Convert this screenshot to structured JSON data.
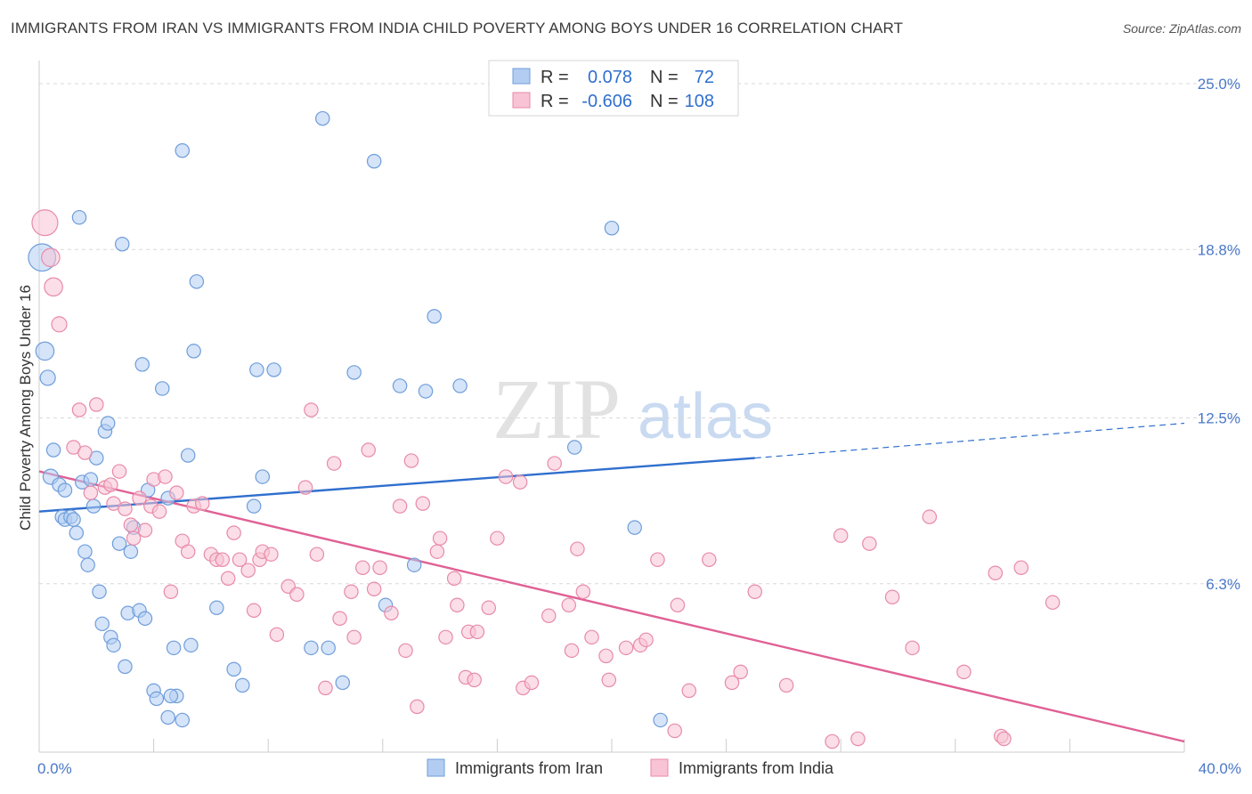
{
  "title": "IMMIGRANTS FROM IRAN VS IMMIGRANTS FROM INDIA CHILD POVERTY AMONG BOYS UNDER 16 CORRELATION CHART",
  "source": "Source: ZipAtlas.com",
  "watermark": {
    "zip": "ZIP",
    "atlas": "atlas"
  },
  "colors": {
    "iran_fill": "#b3cdf2",
    "iran_stroke": "#6f9ddb",
    "iran_line": "#2f6fce",
    "india_fill": "#f8c3d4",
    "india_stroke": "#e88aaa",
    "india_line": "#e06094",
    "grid": "#d9d9d9",
    "tick_label": "#4a78c8"
  },
  "legend": {
    "r_label": "R =",
    "n_label": "N =",
    "iran": {
      "r": "0.078",
      "n": "72"
    },
    "india": {
      "r": "-0.606",
      "n": "108"
    }
  },
  "chart_data": {
    "type": "scatter",
    "xlabel": "",
    "ylabel": "Child Poverty Among Boys Under 16",
    "xlim": [
      0,
      40
    ],
    "ylim": [
      0,
      25.6
    ],
    "x_tick_labels": [
      "0.0%",
      "40.0%"
    ],
    "y_ticks": [
      6.3,
      12.5,
      18.8,
      25.0
    ],
    "y_tick_labels": [
      "6.3%",
      "12.5%",
      "18.8%",
      "25.0%"
    ],
    "grid": "horizontal dashed",
    "legend_position": "top-center",
    "series": [
      {
        "name": "Immigrants from Iran",
        "trend": {
          "x": [
            0,
            25
          ],
          "y": [
            9.0,
            11.0
          ],
          "dashed_to": [
            40,
            12.3
          ]
        },
        "points": [
          [
            0.1,
            18.5,
            1.8
          ],
          [
            0.2,
            15.0,
            1.2
          ],
          [
            0.3,
            14.0,
            1.0
          ],
          [
            0.4,
            10.3,
            1.0
          ],
          [
            0.5,
            11.3,
            0.9
          ],
          [
            0.7,
            10.0,
            0.9
          ],
          [
            0.8,
            8.8,
            0.9
          ],
          [
            0.9,
            8.7,
            0.9
          ],
          [
            0.9,
            9.8,
            0.9
          ],
          [
            1.1,
            8.8,
            0.9
          ],
          [
            1.2,
            8.7,
            0.9
          ],
          [
            1.3,
            8.2,
            0.9
          ],
          [
            1.4,
            20.0,
            0.9
          ],
          [
            1.5,
            10.1,
            0.9
          ],
          [
            1.6,
            7.5,
            0.9
          ],
          [
            1.7,
            7.0,
            0.9
          ],
          [
            1.8,
            10.2,
            0.9
          ],
          [
            1.9,
            9.2,
            0.9
          ],
          [
            2.0,
            11.0,
            0.9
          ],
          [
            2.1,
            6.0,
            0.9
          ],
          [
            2.2,
            4.8,
            0.9
          ],
          [
            2.3,
            12.0,
            0.9
          ],
          [
            2.4,
            12.3,
            0.9
          ],
          [
            2.5,
            4.3,
            0.9
          ],
          [
            2.6,
            4.0,
            0.9
          ],
          [
            2.8,
            7.8,
            0.9
          ],
          [
            2.9,
            19.0,
            0.9
          ],
          [
            3.0,
            3.2,
            0.9
          ],
          [
            3.1,
            5.2,
            0.9
          ],
          [
            3.2,
            7.5,
            0.9
          ],
          [
            3.3,
            8.4,
            0.9
          ],
          [
            3.5,
            5.3,
            0.9
          ],
          [
            3.6,
            14.5,
            0.9
          ],
          [
            3.7,
            5.0,
            0.9
          ],
          [
            3.8,
            9.8,
            0.9
          ],
          [
            4.0,
            2.3,
            0.9
          ],
          [
            4.1,
            2.0,
            0.9
          ],
          [
            4.3,
            13.6,
            0.9
          ],
          [
            4.5,
            9.5,
            0.9
          ],
          [
            4.7,
            3.9,
            0.9
          ],
          [
            4.8,
            2.1,
            0.9
          ],
          [
            5.0,
            22.5,
            0.9
          ],
          [
            5.2,
            11.1,
            0.9
          ],
          [
            5.3,
            4.0,
            0.9
          ],
          [
            5.4,
            15.0,
            0.9
          ],
          [
            5.5,
            17.6,
            0.9
          ],
          [
            6.2,
            5.4,
            0.9
          ],
          [
            6.8,
            3.1,
            0.9
          ],
          [
            7.1,
            2.5,
            0.9
          ],
          [
            7.5,
            9.2,
            0.9
          ],
          [
            7.6,
            14.3,
            0.9
          ],
          [
            7.8,
            10.3,
            0.9
          ],
          [
            8.2,
            14.3,
            0.9
          ],
          [
            9.5,
            3.9,
            0.9
          ],
          [
            9.9,
            23.7,
            0.9
          ],
          [
            10.1,
            3.9,
            0.9
          ],
          [
            10.6,
            2.6,
            0.9
          ],
          [
            11.0,
            14.2,
            0.9
          ],
          [
            11.7,
            22.1,
            0.9
          ],
          [
            12.1,
            5.5,
            0.9
          ],
          [
            12.6,
            13.7,
            0.9
          ],
          [
            13.1,
            7.0,
            0.9
          ],
          [
            13.5,
            13.5,
            0.9
          ],
          [
            13.8,
            16.3,
            0.9
          ],
          [
            14.7,
            13.7,
            0.9
          ],
          [
            18.7,
            11.4,
            0.9
          ],
          [
            20.0,
            19.6,
            0.9
          ],
          [
            20.8,
            8.4,
            0.9
          ],
          [
            4.5,
            1.3,
            0.9
          ],
          [
            5.0,
            1.2,
            0.9
          ],
          [
            21.7,
            1.2,
            0.9
          ],
          [
            4.6,
            2.1,
            0.9
          ]
        ]
      },
      {
        "name": "Immigrants from India",
        "trend": {
          "x": [
            0,
            40
          ],
          "y": [
            10.5,
            0.4
          ]
        },
        "points": [
          [
            0.2,
            19.8,
            1.7
          ],
          [
            0.4,
            18.5,
            1.2
          ],
          [
            0.5,
            17.4,
            1.2
          ],
          [
            0.7,
            16.0,
            1.0
          ],
          [
            1.2,
            11.4,
            0.9
          ],
          [
            1.4,
            12.8,
            0.9
          ],
          [
            1.6,
            11.2,
            0.9
          ],
          [
            1.8,
            9.7,
            0.9
          ],
          [
            2.0,
            13.0,
            0.9
          ],
          [
            2.3,
            9.9,
            0.9
          ],
          [
            2.5,
            10.0,
            0.9
          ],
          [
            2.6,
            9.3,
            0.9
          ],
          [
            2.8,
            10.5,
            0.9
          ],
          [
            3.0,
            9.1,
            0.9
          ],
          [
            3.2,
            8.5,
            0.9
          ],
          [
            3.3,
            8.0,
            0.9
          ],
          [
            3.5,
            9.5,
            0.9
          ],
          [
            3.7,
            8.3,
            0.9
          ],
          [
            3.9,
            9.2,
            0.9
          ],
          [
            4.0,
            10.2,
            0.9
          ],
          [
            4.2,
            9.0,
            0.9
          ],
          [
            4.4,
            10.3,
            0.9
          ],
          [
            4.6,
            6.0,
            0.9
          ],
          [
            4.8,
            9.7,
            0.9
          ],
          [
            5.0,
            7.9,
            0.9
          ],
          [
            5.2,
            7.5,
            0.9
          ],
          [
            5.4,
            9.2,
            0.9
          ],
          [
            5.7,
            9.3,
            0.9
          ],
          [
            6.0,
            7.4,
            0.9
          ],
          [
            6.2,
            7.2,
            0.9
          ],
          [
            6.4,
            7.2,
            0.9
          ],
          [
            6.6,
            6.5,
            0.9
          ],
          [
            6.8,
            8.2,
            0.9
          ],
          [
            7.0,
            7.2,
            0.9
          ],
          [
            7.3,
            6.8,
            0.9
          ],
          [
            7.5,
            5.3,
            0.9
          ],
          [
            7.7,
            7.2,
            0.9
          ],
          [
            7.8,
            7.5,
            0.9
          ],
          [
            8.1,
            7.4,
            0.9
          ],
          [
            8.3,
            4.4,
            0.9
          ],
          [
            8.7,
            6.2,
            0.9
          ],
          [
            9.0,
            5.9,
            0.9
          ],
          [
            9.3,
            9.9,
            0.9
          ],
          [
            9.5,
            12.8,
            0.9
          ],
          [
            9.7,
            7.4,
            0.9
          ],
          [
            10.0,
            2.4,
            0.9
          ],
          [
            10.3,
            10.8,
            0.9
          ],
          [
            10.5,
            5.0,
            0.9
          ],
          [
            10.9,
            6.0,
            0.9
          ],
          [
            11.0,
            4.3,
            0.9
          ],
          [
            11.3,
            6.9,
            0.9
          ],
          [
            11.5,
            11.3,
            0.9
          ],
          [
            11.7,
            6.1,
            0.9
          ],
          [
            11.9,
            6.9,
            0.9
          ],
          [
            12.3,
            5.2,
            0.9
          ],
          [
            12.6,
            9.2,
            0.9
          ],
          [
            12.8,
            3.8,
            0.9
          ],
          [
            13.0,
            10.9,
            0.9
          ],
          [
            13.2,
            1.7,
            0.9
          ],
          [
            13.4,
            9.3,
            0.9
          ],
          [
            13.9,
            7.5,
            0.9
          ],
          [
            14.0,
            8.0,
            0.9
          ],
          [
            14.2,
            4.3,
            0.9
          ],
          [
            14.5,
            6.5,
            0.9
          ],
          [
            14.6,
            5.5,
            0.9
          ],
          [
            14.9,
            2.8,
            0.9
          ],
          [
            15.0,
            4.5,
            0.9
          ],
          [
            15.2,
            2.7,
            0.9
          ],
          [
            15.3,
            4.5,
            0.9
          ],
          [
            15.7,
            5.4,
            0.9
          ],
          [
            16.0,
            8.0,
            0.9
          ],
          [
            16.3,
            10.3,
            0.9
          ],
          [
            16.8,
            10.1,
            0.9
          ],
          [
            16.9,
            2.4,
            0.9
          ],
          [
            17.2,
            2.6,
            0.9
          ],
          [
            17.8,
            5.1,
            0.9
          ],
          [
            18.0,
            10.8,
            0.9
          ],
          [
            18.5,
            5.5,
            0.9
          ],
          [
            18.6,
            3.8,
            0.9
          ],
          [
            18.8,
            7.6,
            0.9
          ],
          [
            19.0,
            6.0,
            0.9
          ],
          [
            19.3,
            4.3,
            0.9
          ],
          [
            19.8,
            3.6,
            0.9
          ],
          [
            19.9,
            2.7,
            0.9
          ],
          [
            20.5,
            3.9,
            0.9
          ],
          [
            21.0,
            4.0,
            0.9
          ],
          [
            21.2,
            4.2,
            0.9
          ],
          [
            21.6,
            7.2,
            0.9
          ],
          [
            22.2,
            0.8,
            0.9
          ],
          [
            22.3,
            5.5,
            0.9
          ],
          [
            22.7,
            2.3,
            0.9
          ],
          [
            23.4,
            7.2,
            0.9
          ],
          [
            24.2,
            2.6,
            0.9
          ],
          [
            24.5,
            3.0,
            0.9
          ],
          [
            25.0,
            6.0,
            0.9
          ],
          [
            26.1,
            2.5,
            0.9
          ],
          [
            27.7,
            0.4,
            0.9
          ],
          [
            28.0,
            8.1,
            0.9
          ],
          [
            28.6,
            0.5,
            0.9
          ],
          [
            29.0,
            7.8,
            0.9
          ],
          [
            29.8,
            5.8,
            0.9
          ],
          [
            30.5,
            3.9,
            0.9
          ],
          [
            31.1,
            8.8,
            0.9
          ],
          [
            32.3,
            3.0,
            0.9
          ],
          [
            33.4,
            6.7,
            0.9
          ],
          [
            33.6,
            0.6,
            0.9
          ],
          [
            33.7,
            0.5,
            0.9
          ],
          [
            34.3,
            6.9,
            0.9
          ],
          [
            35.4,
            5.6,
            0.9
          ]
        ]
      }
    ]
  },
  "bottom_legend": {
    "iran": "Immigrants from Iran",
    "india": "Immigrants from India"
  }
}
